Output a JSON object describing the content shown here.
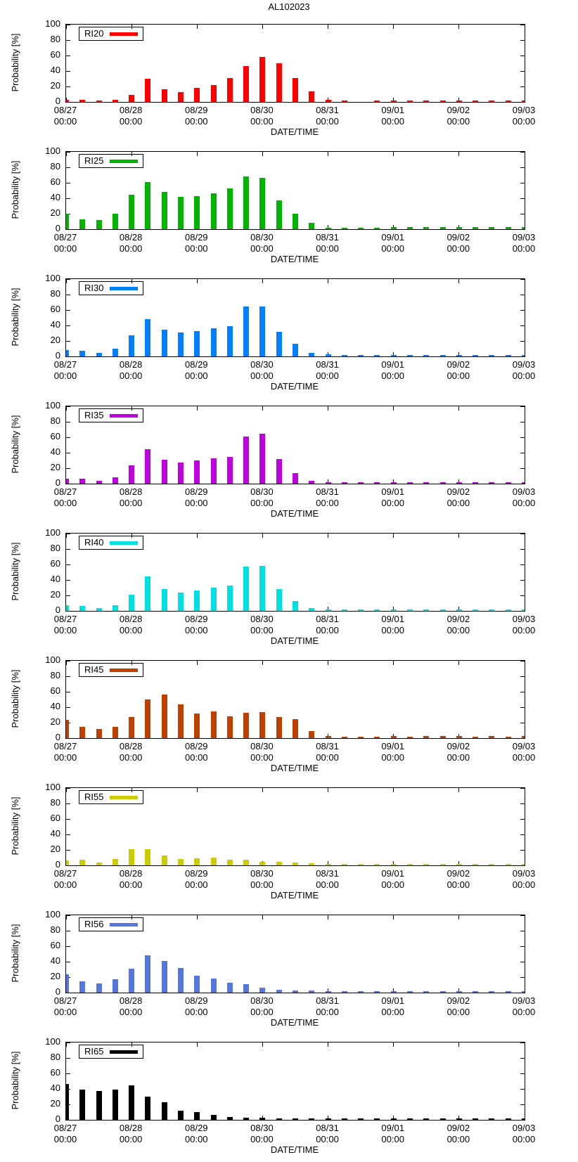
{
  "chart_data": {
    "type": "bar",
    "layout": "9 stacked panels (small multiples), shared x-axis range, grid off, legend boxed top-left inside each panel",
    "title": "AL102023",
    "xlabel": "DATE/TIME",
    "ylabel": "Probability [%]",
    "ylim": [
      0,
      100
    ],
    "yticks": [
      0,
      20,
      40,
      60,
      80,
      100
    ],
    "x_start": "08/27 00:00",
    "x_step_hours": 6,
    "x_tick_labels": [
      [
        "08/27",
        "00:00"
      ],
      [
        "08/28",
        "00:00"
      ],
      [
        "08/29",
        "00:00"
      ],
      [
        "08/30",
        "00:00"
      ],
      [
        "08/31",
        "00:00"
      ],
      [
        "09/01",
        "00:00"
      ],
      [
        "09/02",
        "00:00"
      ],
      [
        "09/03",
        "00:00"
      ]
    ],
    "panels": [
      {
        "legend": "RI20",
        "color": "#ff0000",
        "values": [
          3,
          3,
          2,
          3,
          9,
          30,
          16,
          13,
          18,
          22,
          31,
          46,
          58,
          50,
          31,
          14,
          3,
          2,
          0,
          2,
          2,
          2,
          2,
          2,
          2,
          2,
          2,
          2,
          2
        ]
      },
      {
        "legend": "RI25",
        "color": "#00b400",
        "values": [
          20,
          13,
          12,
          20,
          45,
          61,
          48,
          42,
          43,
          46,
          53,
          68,
          66,
          37,
          20,
          8,
          2,
          2,
          2,
          2,
          3,
          3,
          3,
          3,
          3,
          3,
          3,
          3,
          3
        ]
      },
      {
        "legend": "RI30",
        "color": "#0080ff",
        "values": [
          8,
          7,
          5,
          10,
          27,
          48,
          35,
          31,
          33,
          36,
          39,
          65,
          65,
          32,
          16,
          5,
          3,
          2,
          2,
          2,
          2,
          2,
          2,
          2,
          2,
          2,
          2,
          2,
          2
        ]
      },
      {
        "legend": "RI35",
        "color": "#c000e0",
        "values": [
          6,
          6,
          4,
          8,
          24,
          45,
          31,
          27,
          30,
          33,
          35,
          61,
          65,
          32,
          14,
          4,
          2,
          2,
          2,
          2,
          2,
          2,
          2,
          2,
          2,
          2,
          2,
          2,
          2
        ]
      },
      {
        "legend": "RI40",
        "color": "#00e0e0",
        "values": [
          7,
          6,
          4,
          7,
          21,
          45,
          28,
          24,
          26,
          30,
          33,
          57,
          58,
          28,
          13,
          4,
          2,
          2,
          2,
          2,
          2,
          2,
          2,
          2,
          2,
          2,
          2,
          2,
          2
        ]
      },
      {
        "legend": "RI45",
        "color": "#c04000",
        "values": [
          24,
          15,
          12,
          15,
          27,
          50,
          56,
          44,
          32,
          35,
          28,
          33,
          34,
          27,
          25,
          9,
          3,
          2,
          2,
          2,
          3,
          2,
          3,
          3,
          3,
          2,
          3,
          2,
          3
        ]
      },
      {
        "legend": "RI55",
        "color": "#cccc00",
        "values": [
          6,
          7,
          4,
          8,
          21,
          21,
          13,
          8,
          9,
          10,
          7,
          7,
          5,
          5,
          4,
          3,
          2,
          2,
          2,
          2,
          2,
          2,
          2,
          2,
          2,
          2,
          2,
          2,
          2
        ]
      },
      {
        "legend": "RI56",
        "color": "#5577dd",
        "values": [
          24,
          15,
          12,
          17,
          31,
          48,
          41,
          32,
          22,
          18,
          13,
          11,
          6,
          4,
          3,
          3,
          2,
          2,
          2,
          2,
          2,
          2,
          2,
          2,
          2,
          2,
          2,
          2,
          2
        ]
      },
      {
        "legend": "RI65",
        "color": "#000000",
        "values": [
          46,
          39,
          37,
          39,
          45,
          30,
          23,
          12,
          10,
          6,
          4,
          3,
          3,
          2,
          2,
          2,
          2,
          2,
          2,
          2,
          2,
          2,
          2,
          2,
          2,
          2,
          2,
          2,
          2
        ]
      }
    ]
  }
}
